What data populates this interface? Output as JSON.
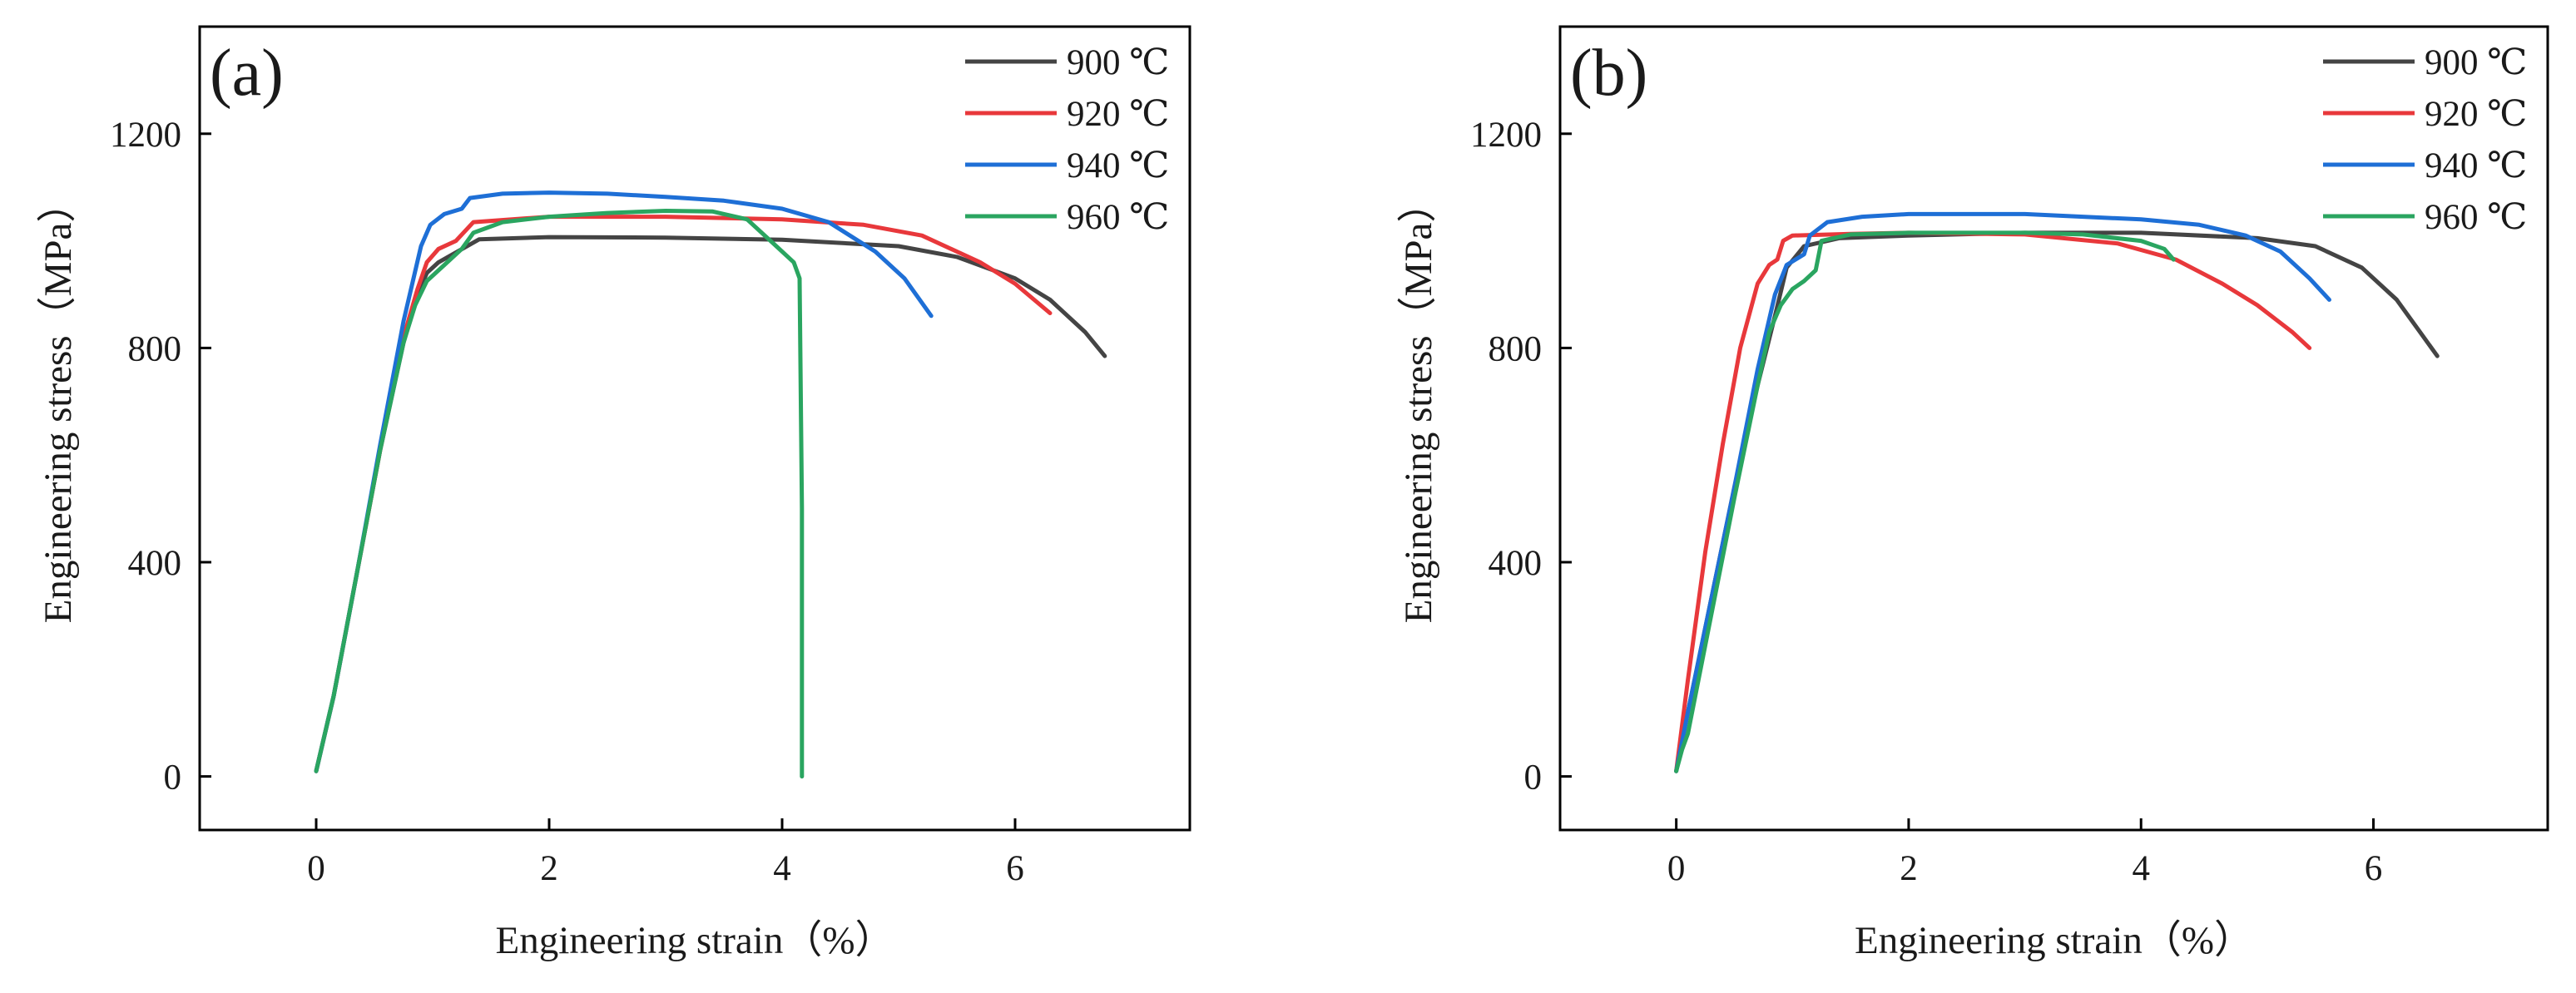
{
  "chart_data": [
    {
      "type": "line",
      "panel_label": "(a)",
      "xlabel": "Engineering strain（%）",
      "ylabel": "Engineering stress（MPa）",
      "xlim": [
        -1.0,
        7.5
      ],
      "ylim": [
        -100,
        1400
      ],
      "xticks": [
        0,
        2,
        4,
        6
      ],
      "yticks": [
        0,
        400,
        800,
        1200
      ],
      "legend_position": "top-right",
      "series": [
        {
          "name": "900 ℃",
          "color": "#444444",
          "x": [
            0.0,
            0.15,
            0.35,
            0.55,
            0.75,
            0.87,
            0.95,
            1.05,
            1.4,
            2.0,
            3.0,
            4.0,
            5.0,
            5.5,
            6.0,
            6.3,
            6.6,
            6.77
          ],
          "y": [
            10,
            150,
            380,
            610,
            810,
            900,
            940,
            960,
            1003,
            1007,
            1006,
            1002,
            990,
            970,
            930,
            890,
            830,
            785
          ]
        },
        {
          "name": "920 ℃",
          "color": "#e8383b",
          "x": [
            0.0,
            0.15,
            0.35,
            0.55,
            0.75,
            0.87,
            0.95,
            1.05,
            1.2,
            1.35,
            2.0,
            3.0,
            4.0,
            4.7,
            5.2,
            5.7,
            6.0,
            6.3
          ],
          "y": [
            10,
            150,
            380,
            610,
            820,
            910,
            960,
            985,
            1000,
            1035,
            1045,
            1045,
            1040,
            1030,
            1010,
            960,
            920,
            865
          ]
        },
        {
          "name": "940 ℃",
          "color": "#1e6fd6",
          "x": [
            0.0,
            0.15,
            0.35,
            0.55,
            0.75,
            0.9,
            0.98,
            1.1,
            1.25,
            1.32,
            1.6,
            2.0,
            2.5,
            3.0,
            3.5,
            4.0,
            4.4,
            4.8,
            5.05,
            5.28
          ],
          "y": [
            10,
            150,
            380,
            620,
            850,
            990,
            1030,
            1050,
            1060,
            1080,
            1088,
            1090,
            1088,
            1082,
            1075,
            1060,
            1035,
            980,
            930,
            860
          ]
        },
        {
          "name": "960 ℃",
          "color": "#2aa560",
          "x": [
            0.0,
            0.15,
            0.35,
            0.55,
            0.75,
            0.85,
            0.95,
            1.1,
            1.25,
            1.35,
            1.6,
            2.0,
            2.5,
            3.0,
            3.4,
            3.7,
            3.95,
            4.1,
            4.15,
            4.17,
            4.17
          ],
          "y": [
            10,
            150,
            380,
            610,
            810,
            880,
            925,
            955,
            985,
            1015,
            1035,
            1045,
            1052,
            1056,
            1055,
            1040,
            990,
            960,
            930,
            500,
            0
          ]
        }
      ]
    },
    {
      "type": "line",
      "panel_label": "(b)",
      "xlabel": "Engineering strain（%）",
      "ylabel": "Engineering stress（MPa）",
      "xlim": [
        -1.0,
        7.5
      ],
      "ylim": [
        -100,
        1400
      ],
      "xticks": [
        0,
        2,
        4,
        6
      ],
      "yticks": [
        0,
        400,
        800,
        1200
      ],
      "legend_position": "top-right",
      "series": [
        {
          "name": "900 ℃",
          "color": "#444444",
          "x": [
            0.0,
            0.1,
            0.3,
            0.5,
            0.7,
            0.85,
            0.95,
            1.1,
            1.4,
            2.0,
            3.0,
            4.0,
            5.0,
            5.5,
            5.9,
            6.2,
            6.4,
            6.55
          ],
          "y": [
            10,
            120,
            330,
            540,
            730,
            860,
            950,
            990,
            1005,
            1010,
            1015,
            1015,
            1005,
            990,
            950,
            890,
            830,
            785
          ]
        },
        {
          "name": "920 ℃",
          "color": "#e8383b",
          "x": [
            0.0,
            0.1,
            0.25,
            0.4,
            0.55,
            0.7,
            0.8,
            0.87,
            0.92,
            1.0,
            1.5,
            2.0,
            3.0,
            3.8,
            4.3,
            4.7,
            5.0,
            5.3,
            5.45
          ],
          "y": [
            10,
            180,
            420,
            620,
            800,
            920,
            955,
            965,
            1000,
            1010,
            1013,
            1015,
            1012,
            995,
            965,
            920,
            880,
            830,
            800
          ]
        },
        {
          "name": "940 ℃",
          "color": "#1e6fd6",
          "x": [
            0.0,
            0.1,
            0.3,
            0.5,
            0.7,
            0.85,
            0.95,
            1.1,
            1.15,
            1.3,
            1.6,
            2.0,
            3.0,
            4.0,
            4.5,
            4.9,
            5.2,
            5.45,
            5.62
          ],
          "y": [
            10,
            120,
            330,
            540,
            760,
            900,
            955,
            975,
            1010,
            1035,
            1045,
            1050,
            1050,
            1040,
            1030,
            1010,
            980,
            930,
            890
          ]
        },
        {
          "name": "960 ℃",
          "color": "#2aa560",
          "x": [
            0.0,
            0.05,
            0.1,
            0.3,
            0.5,
            0.7,
            0.8,
            0.9,
            1.0,
            1.1,
            1.2,
            1.25,
            1.5,
            2.0,
            3.0,
            3.5,
            4.0,
            4.2,
            4.28
          ],
          "y": [
            10,
            50,
            80,
            300,
            520,
            730,
            830,
            880,
            910,
            925,
            945,
            1000,
            1012,
            1015,
            1015,
            1012,
            1000,
            985,
            965
          ]
        }
      ]
    }
  ]
}
